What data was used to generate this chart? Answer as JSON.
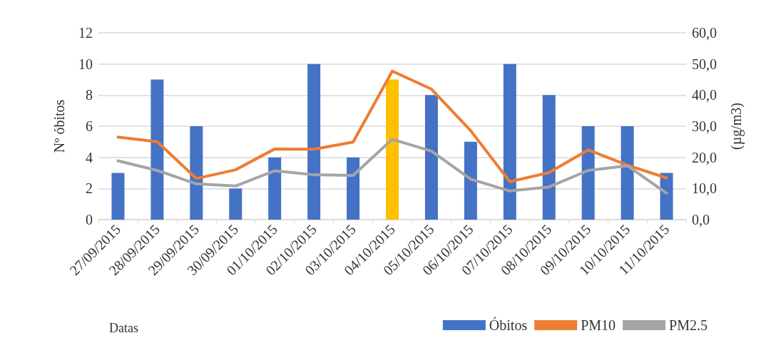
{
  "chart_data": {
    "type": "bar",
    "xlabel": "Datas",
    "ylabel": "Nº óbitos",
    "y2label": "(µg/m3)",
    "categories": [
      "27/09/2015",
      "28/09/2015",
      "29/09/2015",
      "30/09/2015",
      "01/10/2015",
      "02/10/2015",
      "03/10/2015",
      "04/10/2015",
      "05/10/2015",
      "06/10/2015",
      "07/10/2015",
      "08/10/2015",
      "09/10/2015",
      "10/10/2015",
      "11/10/2015"
    ],
    "series": [
      {
        "name": "Óbitos",
        "color": "#4472c4",
        "colors": [
          "#4472c4",
          "#4472c4",
          "#4472c4",
          "#4472c4",
          "#4472c4",
          "#4472c4",
          "#4472c4",
          "#ffc000",
          "#4472c4",
          "#4472c4",
          "#4472c4",
          "#4472c4",
          "#4472c4",
          "#4472c4",
          "#4472c4"
        ],
        "values": [
          3,
          9,
          6,
          2,
          4,
          10,
          4,
          9,
          8,
          5,
          10,
          8,
          6,
          6,
          3
        ]
      },
      {
        "name": "PM10",
        "type": "line",
        "axis": "y2",
        "color": "#ed7d31",
        "values": [
          26.5,
          25.0,
          13.2,
          16.0,
          22.7,
          22.6,
          24.9,
          47.7,
          41.9,
          28.6,
          12.2,
          15.1,
          22.4,
          17.5,
          13.4
        ]
      },
      {
        "name": "PM2.5",
        "type": "line",
        "axis": "y2",
        "color": "#a5a5a5",
        "values": [
          18.9,
          15.8,
          11.5,
          10.8,
          15.7,
          14.4,
          14.2,
          25.8,
          22.0,
          13.0,
          9.2,
          10.5,
          15.8,
          17.3,
          8.5
        ]
      }
    ],
    "ylim": [
      0,
      12
    ],
    "yticks": [
      0,
      2,
      4,
      6,
      8,
      10,
      12
    ],
    "y2lim": [
      0,
      60
    ],
    "y2ticks": [
      {
        "value": 0,
        "label": "0,0"
      },
      {
        "value": 10,
        "label": "10,0"
      },
      {
        "value": 20,
        "label": "20,0"
      },
      {
        "value": 30,
        "label": "30,0"
      },
      {
        "value": 40,
        "label": "40,0"
      },
      {
        "value": 50,
        "label": "50,0"
      },
      {
        "value": 60,
        "label": "60,0"
      }
    ],
    "grid": "y",
    "legend": "bottom right",
    "marker": "none",
    "line_style": "solid"
  }
}
